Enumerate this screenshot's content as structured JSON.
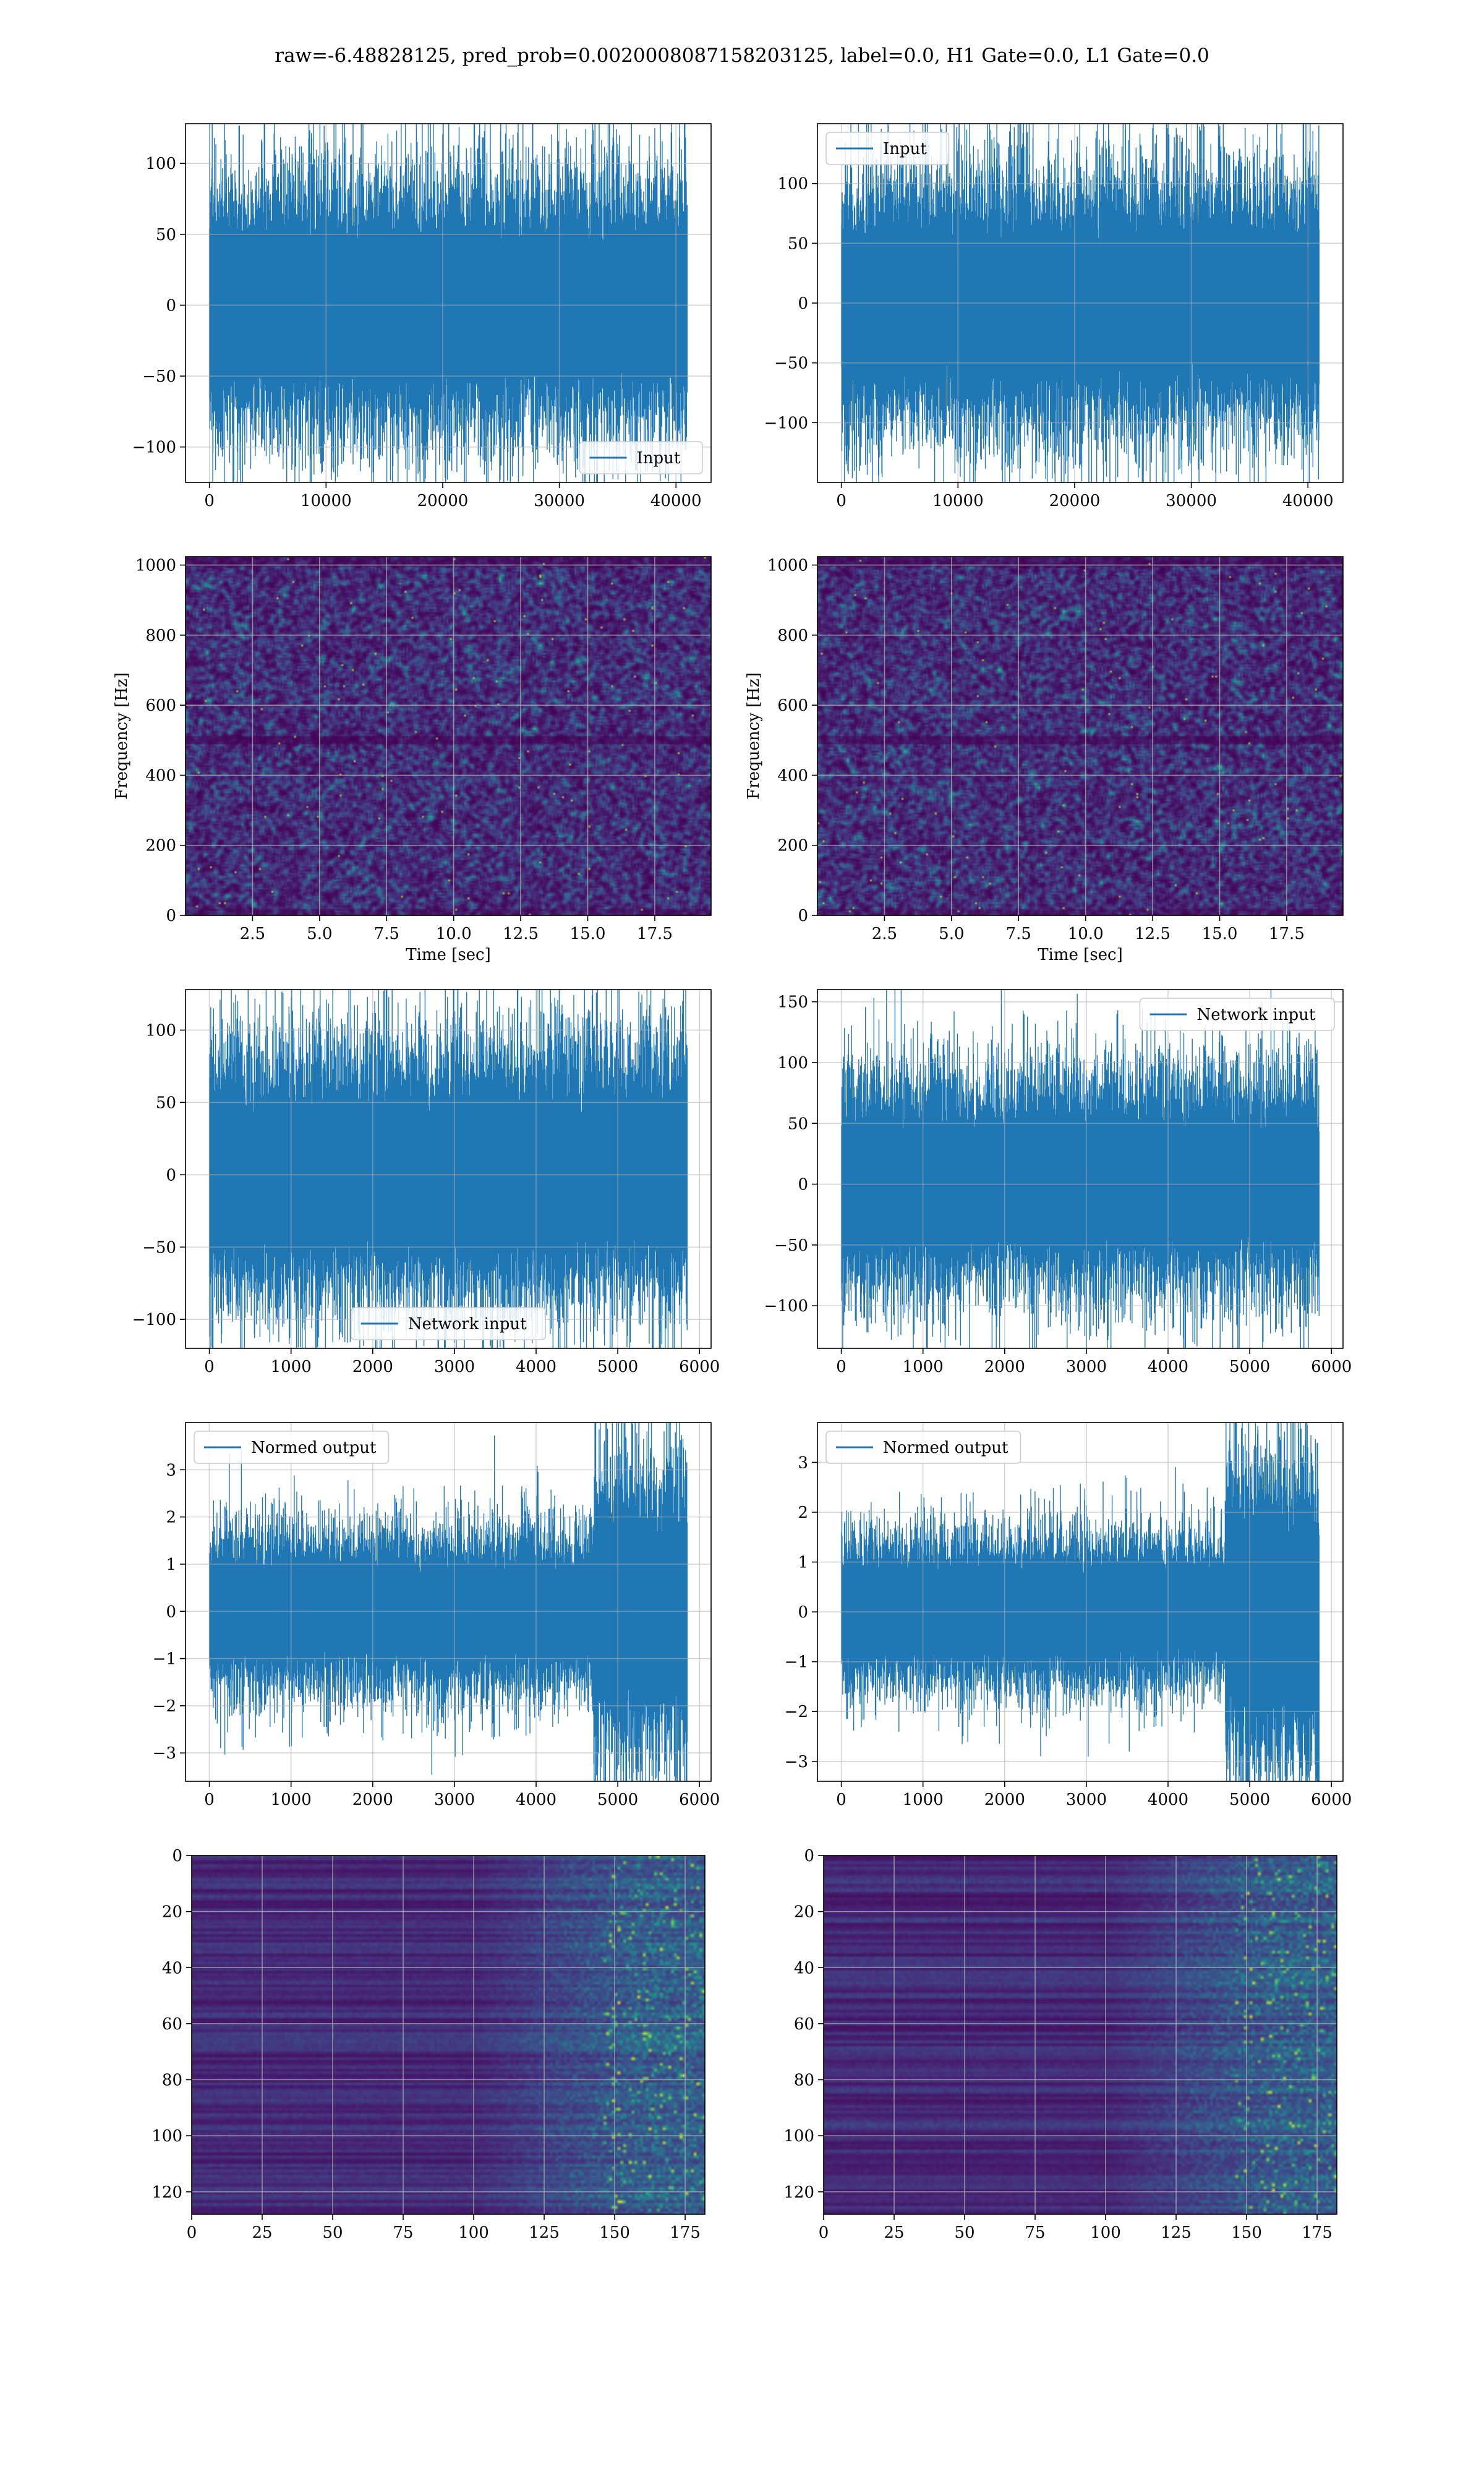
{
  "title": "raw=-6.48828125, pred_prob=0.0020008087158203125, label=0.0, H1 Gate=0.0, L1 Gate=0.0",
  "colors": {
    "line": "#1f77b4",
    "grid": "#b0b0b0",
    "viridis_low": "#440154",
    "viridis_high": "#fde725"
  },
  "chart_data": [
    {
      "id": "h1-input",
      "type": "line",
      "style": "dense-noise",
      "series": [
        {
          "name": "Input",
          "n": 40960,
          "amplitude": 100
        }
      ],
      "x_ticks": [
        0,
        10000,
        20000,
        30000,
        40000
      ],
      "y_ticks": [
        -100,
        -50,
        0,
        50,
        100
      ],
      "xlim": [
        -2048,
        43008
      ],
      "ylim": [
        -125,
        128
      ],
      "legend": "lower-right",
      "grid": true
    },
    {
      "id": "l1-input",
      "type": "line",
      "style": "dense-noise",
      "series": [
        {
          "name": "Input",
          "n": 40960,
          "amplitude": 120
        }
      ],
      "x_ticks": [
        0,
        10000,
        20000,
        30000,
        40000
      ],
      "y_ticks": [
        -100,
        -50,
        0,
        50,
        100
      ],
      "xlim": [
        -2048,
        43008
      ],
      "ylim": [
        -150,
        150
      ],
      "legend": "upper-left",
      "grid": true
    },
    {
      "id": "h1-spectrogram",
      "type": "heatmap",
      "style": "spectrogram",
      "xlabel": "Time [sec]",
      "ylabel": "Frequency [Hz]",
      "x_ticks": [
        2.5,
        5.0,
        7.5,
        10.0,
        12.5,
        15.0,
        17.5
      ],
      "x_tick_labels": [
        "2.5",
        "5.0",
        "7.5",
        "10.0",
        "12.5",
        "15.0",
        "17.5"
      ],
      "y_ticks": [
        0,
        200,
        400,
        600,
        800,
        1000
      ],
      "xlim": [
        0,
        19.6
      ],
      "ylim": [
        0,
        1024
      ],
      "grid": true
    },
    {
      "id": "l1-spectrogram",
      "type": "heatmap",
      "style": "spectrogram",
      "xlabel": "Time [sec]",
      "ylabel": "Frequency [Hz]",
      "x_ticks": [
        2.5,
        5.0,
        7.5,
        10.0,
        12.5,
        15.0,
        17.5
      ],
      "x_tick_labels": [
        "2.5",
        "5.0",
        "7.5",
        "10.0",
        "12.5",
        "15.0",
        "17.5"
      ],
      "y_ticks": [
        0,
        200,
        400,
        600,
        800,
        1000
      ],
      "xlim": [
        0,
        19.6
      ],
      "ylim": [
        0,
        1024
      ],
      "grid": true
    },
    {
      "id": "h1-network-input",
      "type": "line",
      "style": "dense-noise",
      "series": [
        {
          "name": "Network input",
          "n": 5850,
          "amplitude": 100
        }
      ],
      "x_ticks": [
        0,
        1000,
        2000,
        3000,
        4000,
        5000,
        6000
      ],
      "y_ticks": [
        -100,
        -50,
        0,
        50,
        100
      ],
      "xlim": [
        -292,
        6142
      ],
      "ylim": [
        -120,
        128
      ],
      "legend": "lower-center",
      "grid": true
    },
    {
      "id": "l1-network-input",
      "type": "line",
      "style": "dense-noise",
      "series": [
        {
          "name": "Network input",
          "n": 5850,
          "amplitude": 100
        }
      ],
      "x_ticks": [
        0,
        1000,
        2000,
        3000,
        4000,
        5000,
        6000
      ],
      "y_ticks": [
        -100,
        -50,
        0,
        50,
        100,
        150
      ],
      "xlim": [
        -292,
        6142
      ],
      "ylim": [
        -135,
        160
      ],
      "legend": "upper-right",
      "grid": true
    },
    {
      "id": "h1-normed-output",
      "type": "line",
      "style": "dense-noise",
      "series": [
        {
          "name": "Normed output",
          "n": 5850,
          "amplitude": 1.9,
          "burst_start": 4700,
          "burst_amplitude": 3.5
        }
      ],
      "x_ticks": [
        0,
        1000,
        2000,
        3000,
        4000,
        5000,
        6000
      ],
      "y_ticks": [
        -3,
        -2,
        -1,
        0,
        1,
        2,
        3
      ],
      "xlim": [
        -292,
        6142
      ],
      "ylim": [
        -3.6,
        4.0
      ],
      "legend": "upper-left",
      "grid": true
    },
    {
      "id": "l1-normed-output",
      "type": "line",
      "style": "dense-noise",
      "series": [
        {
          "name": "Normed output",
          "n": 5850,
          "amplitude": 1.7,
          "burst_start": 4700,
          "burst_amplitude": 3.4
        }
      ],
      "x_ticks": [
        0,
        1000,
        2000,
        3000,
        4000,
        5000,
        6000
      ],
      "y_ticks": [
        -3,
        -2,
        -1,
        0,
        1,
        2,
        3
      ],
      "xlim": [
        -292,
        6142
      ],
      "ylim": [
        -3.4,
        3.8
      ],
      "legend": "upper-left",
      "grid": true
    },
    {
      "id": "h1-feature-map",
      "type": "heatmap",
      "style": "feature-map",
      "rows": 128,
      "cols": 182,
      "x_ticks": [
        0,
        25,
        50,
        75,
        100,
        125,
        150,
        175
      ],
      "y_ticks": [
        0,
        20,
        40,
        60,
        80,
        100,
        120
      ],
      "xlim": [
        0,
        182
      ],
      "ylim": [
        128,
        0
      ],
      "grid": true
    },
    {
      "id": "l1-feature-map",
      "type": "heatmap",
      "style": "feature-map",
      "rows": 128,
      "cols": 182,
      "x_ticks": [
        0,
        25,
        50,
        75,
        100,
        125,
        150,
        175
      ],
      "y_ticks": [
        0,
        20,
        40,
        60,
        80,
        100,
        120
      ],
      "xlim": [
        0,
        182
      ],
      "ylim": [
        128,
        0
      ],
      "grid": true
    }
  ]
}
